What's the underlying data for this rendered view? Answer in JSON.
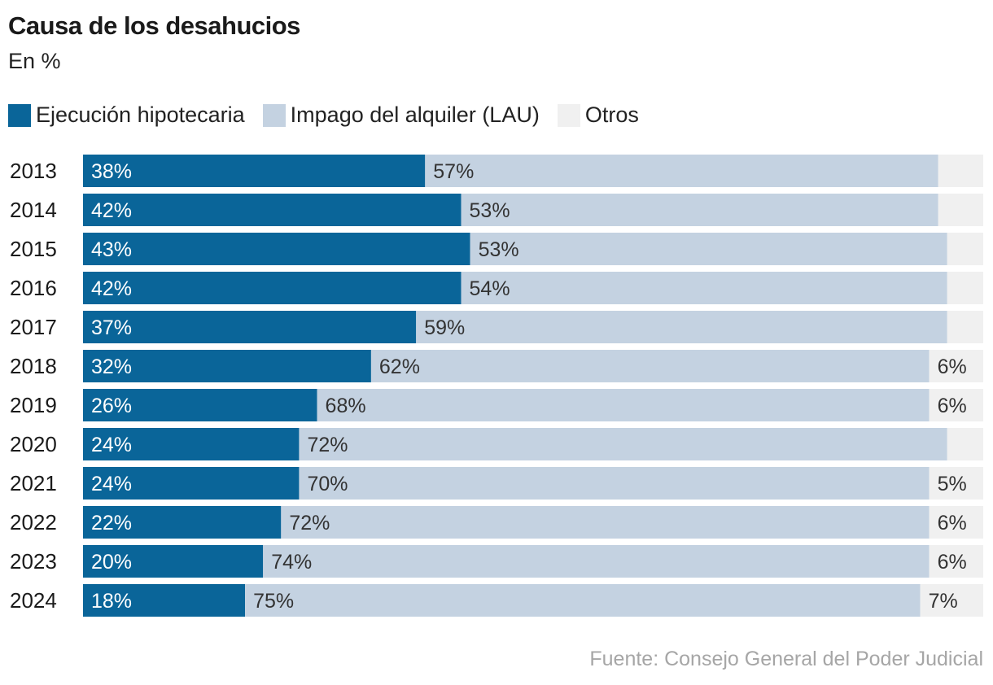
{
  "header": {
    "title": "Causa de los desahucios",
    "subtitle": "En %"
  },
  "legend": {
    "items": [
      {
        "label": "Ejecución hipotecaria",
        "color": "#0a6599"
      },
      {
        "label": "Impago del alquiler (LAU)",
        "color": "#c4d2e1"
      },
      {
        "label": "Otros",
        "color": "#f0f0f0"
      }
    ]
  },
  "footer": {
    "source": "Fuente: Consejo General del Poder Judicial"
  },
  "chart_data": {
    "type": "bar",
    "orientation": "horizontal",
    "stacked": true,
    "title": "Causa de los desahucios",
    "subtitle": "En %",
    "categories": [
      "2013",
      "2014",
      "2015",
      "2016",
      "2017",
      "2018",
      "2019",
      "2020",
      "2021",
      "2022",
      "2023",
      "2024"
    ],
    "series": [
      {
        "name": "Ejecución hipotecaria",
        "color": "#0a6599",
        "label_color": "#ffffff",
        "values": [
          38,
          42,
          43,
          42,
          37,
          32,
          26,
          24,
          24,
          22,
          20,
          18
        ],
        "labels": [
          "38%",
          "42%",
          "43%",
          "42%",
          "37%",
          "32%",
          "26%",
          "24%",
          "24%",
          "22%",
          "20%",
          "18%"
        ]
      },
      {
        "name": "Impago del alquiler (LAU)",
        "color": "#c4d2e1",
        "label_color": "#333333",
        "values": [
          57,
          53,
          53,
          54,
          59,
          62,
          68,
          72,
          70,
          72,
          74,
          75
        ],
        "labels": [
          "57%",
          "53%",
          "53%",
          "54%",
          "59%",
          "62%",
          "68%",
          "72%",
          "70%",
          "72%",
          "74%",
          "75%"
        ]
      },
      {
        "name": "Otros",
        "color": "#f0f0f0",
        "label_color": "#333333",
        "values": [
          5,
          5,
          4,
          4,
          4,
          6,
          6,
          4,
          5,
          6,
          6,
          7
        ],
        "labels": [
          "",
          "",
          "",
          "",
          "",
          "6%",
          "6%",
          "",
          "5%",
          "6%",
          "6%",
          "7%"
        ]
      }
    ],
    "xlim": [
      0,
      100
    ],
    "source": "Fuente: Consejo General del Poder Judicial"
  }
}
